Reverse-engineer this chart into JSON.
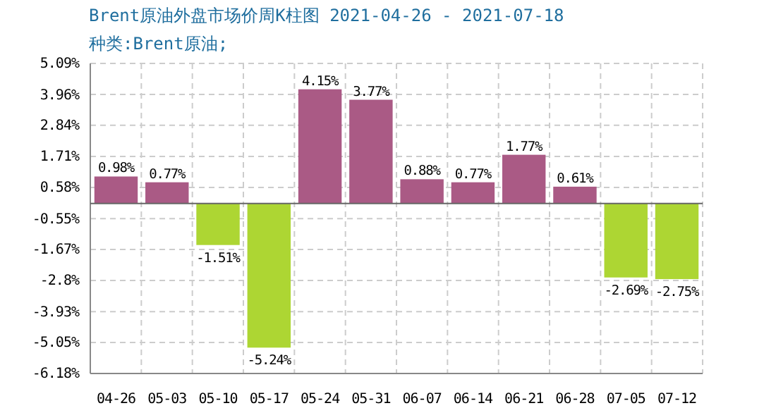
{
  "chart_data": {
    "type": "bar",
    "title": "Brent原油外盘市场价周K柱图  2021-04-26 - 2021-07-18",
    "subtitle": "种类:Brent原油;",
    "categories": [
      "04-26",
      "05-03",
      "05-10",
      "05-17",
      "05-24",
      "05-31",
      "06-07",
      "06-14",
      "06-21",
      "06-28",
      "07-05",
      "07-12"
    ],
    "values": [
      0.98,
      0.77,
      -1.51,
      -5.24,
      4.15,
      3.77,
      0.88,
      0.77,
      1.77,
      0.61,
      -2.69,
      -2.75
    ],
    "colors": [
      "#aa5a85",
      "#aa5a85",
      "#add633",
      "#add633",
      "#aa5a85",
      "#aa5a85",
      "#aa5a85",
      "#aa5a85",
      "#aa5a85",
      "#aa5a85",
      "#add633",
      "#add633"
    ],
    "value_labels": [
      "0.98%",
      "0.77%",
      "-1.51%",
      "-5.24%",
      "4.15%",
      "3.77%",
      "0.88%",
      "0.77%",
      "1.77%",
      "0.61%",
      "-2.69%",
      "-2.75%"
    ],
    "ylim": [
      -6.18,
      5.09
    ],
    "yticks": [
      {
        "value": 5.09,
        "label": "5.09%"
      },
      {
        "value": 3.96,
        "label": "3.96%"
      },
      {
        "value": 2.84,
        "label": "2.84%"
      },
      {
        "value": 1.71,
        "label": "1.71%"
      },
      {
        "value": 0.58,
        "label": "0.58%"
      },
      {
        "value": -0.55,
        "label": "-0.55%"
      },
      {
        "value": -1.67,
        "label": "-1.67%"
      },
      {
        "value": -2.8,
        "label": "-2.8%"
      },
      {
        "value": -3.93,
        "label": "-3.93%"
      },
      {
        "value": -5.05,
        "label": "-5.05%"
      },
      {
        "value": -6.18,
        "label": "-6.18%"
      }
    ],
    "grid": true
  }
}
